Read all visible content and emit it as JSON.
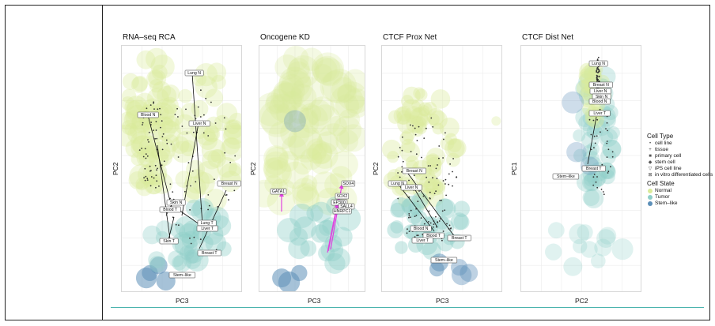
{
  "colors": {
    "frame": "#222222",
    "teal_line": "#4ab3ad",
    "normal": "#d9ea9a",
    "tumor": "#8fcfc8",
    "stemlike": "#5c8fb8",
    "arrow": "#e040e0"
  },
  "chart_data": [
    {
      "type": "scatter",
      "title": "RNA–seq RCA",
      "xlabel": "PC3",
      "ylabel": "PC2",
      "grid": true,
      "legend": "none",
      "labels": [
        "Lung N",
        "Blood N",
        "Liver N",
        "Skin N",
        "Blood T",
        "Breast N",
        "Lung T",
        "Liver T",
        "Skin T",
        "Breast T",
        "Stem–like"
      ]
    },
    {
      "type": "scatter",
      "title": "Oncogene KD",
      "xlabel": "PC3",
      "ylabel": "PC2",
      "grid": true,
      "legend": "none",
      "labels": [
        "GATA1",
        "SOX4",
        "SOX2",
        "EP300",
        "SALL4",
        "HNRPC1"
      ]
    },
    {
      "type": "scatter",
      "title": "CTCF Prox Net",
      "xlabel": "PC3",
      "ylabel": "PC2",
      "grid": true,
      "legend": "none",
      "labels": [
        "Breast N",
        "Lung N",
        "Liver N",
        "Blood N",
        "Blood T",
        "Liver T",
        "Breast T",
        "Stem–like"
      ]
    },
    {
      "type": "scatter",
      "title": "CTCF Dist Net",
      "xlabel": "PC2",
      "ylabel": "PC1",
      "grid": true,
      "legend": "right",
      "labels": [
        "Lung N",
        "Breast N",
        "Liver N",
        "Skin N",
        "Blood N",
        "Liver T",
        "Breast T",
        "Stem–like"
      ]
    }
  ],
  "legend": {
    "cell_type_title": "Cell Type",
    "cell_types": [
      {
        "marker": "•",
        "label": "cell line"
      },
      {
        "marker": "+",
        "label": "tissue"
      },
      {
        "marker": "■",
        "label": "primary cell"
      },
      {
        "marker": "◆",
        "label": "stem cell"
      },
      {
        "marker": "▽",
        "label": "iPS cell line"
      },
      {
        "marker": "⊠",
        "label": "in vitro differentiated cells"
      }
    ],
    "cell_state_title": "Cell State",
    "cell_states": [
      {
        "label": "Normal",
        "color": "#d9ea9a"
      },
      {
        "label": "Tumor",
        "color": "#8fcfc8"
      },
      {
        "label": "Stem–like",
        "color": "#5c8fb8"
      }
    ]
  }
}
